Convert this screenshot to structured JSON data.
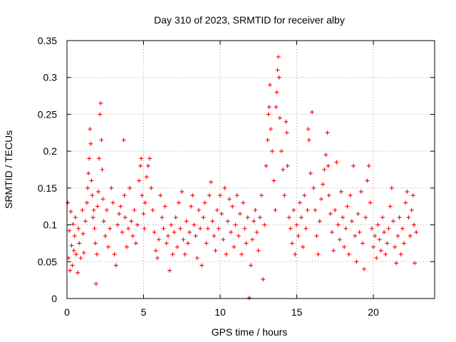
{
  "chart_data": {
    "type": "scatter",
    "title": "Day 310 of 2023, SRMTID for receiver alby",
    "xlabel": "GPS time / hours",
    "ylabel": "SRMTID / TECUs",
    "xlim": [
      0,
      24
    ],
    "ylim": [
      0,
      0.35
    ],
    "xticks": [
      0,
      5,
      10,
      15,
      20
    ],
    "xtick_labels": [
      "0",
      "5",
      "10",
      "15",
      "20"
    ],
    "yticks": [
      0,
      0.05,
      0.1,
      0.15,
      0.2,
      0.25,
      0.3,
      0.35
    ],
    "ytick_labels": [
      "0",
      "0.05",
      "0.1",
      "0.15",
      "0.2",
      "0.25",
      "0.3",
      "0.35"
    ],
    "grid": true,
    "marker": "+",
    "color": "#ff0000",
    "series": [
      {
        "name": "SRMTID",
        "points": [
          [
            0.05,
            0.13
          ],
          [
            0.1,
            0.055
          ],
          [
            0.15,
            0.092
          ],
          [
            0.2,
            0.038
          ],
          [
            0.25,
            0.118
          ],
          [
            0.3,
            0.072
          ],
          [
            0.35,
            0.045
          ],
          [
            0.4,
            0.101
          ],
          [
            0.45,
            0.065
          ],
          [
            0.5,
            0.085
          ],
          [
            0.55,
            0.11
          ],
          [
            0.6,
            0.06
          ],
          [
            0.7,
            0.035
          ],
          [
            0.75,
            0.095
          ],
          [
            0.8,
            0.075
          ],
          [
            0.9,
            0.055
          ],
          [
            1.0,
            0.12
          ],
          [
            1.05,
            0.088
          ],
          [
            1.1,
            0.062
          ],
          [
            1.2,
            0.105
          ],
          [
            1.3,
            0.13
          ],
          [
            1.35,
            0.15
          ],
          [
            1.4,
            0.17
          ],
          [
            1.45,
            0.19
          ],
          [
            1.5,
            0.23
          ],
          [
            1.55,
            0.21
          ],
          [
            1.6,
            0.16
          ],
          [
            1.65,
            0.14
          ],
          [
            1.7,
            0.11
          ],
          [
            1.75,
            0.12
          ],
          [
            1.8,
            0.095
          ],
          [
            1.85,
            0.075
          ],
          [
            1.9,
            0.02
          ],
          [
            1.95,
            0.06
          ],
          [
            2.0,
            0.125
          ],
          [
            2.05,
            0.145
          ],
          [
            2.1,
            0.19
          ],
          [
            2.15,
            0.25
          ],
          [
            2.2,
            0.265
          ],
          [
            2.25,
            0.215
          ],
          [
            2.3,
            0.175
          ],
          [
            2.35,
            0.135
          ],
          [
            2.4,
            0.105
          ],
          [
            2.5,
            0.085
          ],
          [
            2.6,
            0.12
          ],
          [
            2.7,
            0.07
          ],
          [
            2.8,
            0.095
          ],
          [
            2.9,
            0.15
          ],
          [
            3.0,
            0.13
          ],
          [
            3.1,
            0.06
          ],
          [
            3.2,
            0.045
          ],
          [
            3.3,
            0.1
          ],
          [
            3.4,
            0.115
          ],
          [
            3.5,
            0.125
          ],
          [
            3.6,
            0.09
          ],
          [
            3.7,
            0.215
          ],
          [
            3.75,
            0.14
          ],
          [
            3.8,
            0.11
          ],
          [
            3.9,
            0.07
          ],
          [
            4.0,
            0.095
          ],
          [
            4.1,
            0.15
          ],
          [
            4.2,
            0.105
          ],
          [
            4.3,
            0.085
          ],
          [
            4.4,
            0.12
          ],
          [
            4.5,
            0.075
          ],
          [
            4.6,
            0.1
          ],
          [
            4.7,
            0.16
          ],
          [
            4.8,
            0.18
          ],
          [
            4.85,
            0.19
          ],
          [
            4.9,
            0.14
          ],
          [
            5.0,
            0.115
          ],
          [
            5.05,
            0.095
          ],
          [
            5.1,
            0.13
          ],
          [
            5.2,
            0.165
          ],
          [
            5.3,
            0.18
          ],
          [
            5.4,
            0.19
          ],
          [
            5.5,
            0.15
          ],
          [
            5.6,
            0.12
          ],
          [
            5.7,
            0.09
          ],
          [
            5.8,
            0.065
          ],
          [
            5.9,
            0.055
          ],
          [
            6.0,
            0.08
          ],
          [
            6.1,
            0.14
          ],
          [
            6.2,
            0.11
          ],
          [
            6.3,
            0.095
          ],
          [
            6.4,
            0.125
          ],
          [
            6.5,
            0.075
          ],
          [
            6.6,
            0.085
          ],
          [
            6.7,
            0.038
          ],
          [
            6.8,
            0.1
          ],
          [
            6.9,
            0.06
          ],
          [
            7.0,
            0.09
          ],
          [
            7.1,
            0.11
          ],
          [
            7.2,
            0.07
          ],
          [
            7.3,
            0.13
          ],
          [
            7.4,
            0.095
          ],
          [
            7.5,
            0.145
          ],
          [
            7.6,
            0.08
          ],
          [
            7.7,
            0.06
          ],
          [
            7.8,
            0.105
          ],
          [
            7.9,
            0.075
          ],
          [
            8.0,
            0.09
          ],
          [
            8.1,
            0.125
          ],
          [
            8.2,
            0.14
          ],
          [
            8.3,
            0.1
          ],
          [
            8.4,
            0.085
          ],
          [
            8.5,
            0.055
          ],
          [
            8.6,
            0.12
          ],
          [
            8.7,
            0.095
          ],
          [
            8.8,
            0.045
          ],
          [
            8.9,
            0.11
          ],
          [
            9.0,
            0.13
          ],
          [
            9.1,
            0.075
          ],
          [
            9.2,
            0.095
          ],
          [
            9.3,
            0.14
          ],
          [
            9.4,
            0.158
          ],
          [
            9.5,
            0.105
          ],
          [
            9.6,
            0.085
          ],
          [
            9.7,
            0.065
          ],
          [
            9.8,
            0.12
          ],
          [
            9.9,
            0.095
          ],
          [
            10.0,
            0.14
          ],
          [
            10.1,
            0.115
          ],
          [
            10.2,
            0.08
          ],
          [
            10.3,
            0.15
          ],
          [
            10.4,
            0.06
          ],
          [
            10.5,
            0.105
          ],
          [
            10.6,
            0.135
          ],
          [
            10.7,
            0.09
          ],
          [
            10.8,
            0.125
          ],
          [
            10.9,
            0.07
          ],
          [
            11.0,
            0.1
          ],
          [
            11.1,
            0.14
          ],
          [
            11.2,
            0.085
          ],
          [
            11.3,
            0.115
          ],
          [
            11.4,
            0.06
          ],
          [
            11.5,
            0.13
          ],
          [
            11.6,
            0.095
          ],
          [
            11.7,
            0.075
          ],
          [
            11.8,
            0.11
          ],
          [
            11.9,
            0.001
          ],
          [
            12.0,
            0.045
          ],
          [
            12.1,
            0.08
          ],
          [
            12.2,
            0.105
          ],
          [
            12.3,
            0.12
          ],
          [
            12.4,
            0.09
          ],
          [
            12.5,
            0.065
          ],
          [
            12.6,
            0.11
          ],
          [
            12.7,
            0.14
          ],
          [
            12.8,
            0.026
          ],
          [
            12.9,
            0.1
          ],
          [
            13.0,
            0.18
          ],
          [
            13.1,
            0.215
          ],
          [
            13.15,
            0.25
          ],
          [
            13.2,
            0.26
          ],
          [
            13.25,
            0.29
          ],
          [
            13.3,
            0.23
          ],
          [
            13.4,
            0.2
          ],
          [
            13.5,
            0.16
          ],
          [
            13.6,
            0.12
          ],
          [
            13.65,
            0.26
          ],
          [
            13.7,
            0.28
          ],
          [
            13.75,
            0.31
          ],
          [
            13.8,
            0.328
          ],
          [
            13.85,
            0.3
          ],
          [
            13.9,
            0.245
          ],
          [
            14.0,
            0.2
          ],
          [
            14.1,
            0.175
          ],
          [
            14.2,
            0.14
          ],
          [
            14.3,
            0.24
          ],
          [
            14.35,
            0.225
          ],
          [
            14.4,
            0.18
          ],
          [
            14.5,
            0.11
          ],
          [
            14.6,
            0.095
          ],
          [
            14.7,
            0.075
          ],
          [
            14.8,
            0.12
          ],
          [
            14.9,
            0.06
          ],
          [
            15.0,
            0.1
          ],
          [
            15.1,
            0.085
          ],
          [
            15.2,
            0.13
          ],
          [
            15.3,
            0.11
          ],
          [
            15.4,
            0.07
          ],
          [
            15.5,
            0.14
          ],
          [
            15.6,
            0.095
          ],
          [
            15.7,
            0.12
          ],
          [
            15.75,
            0.23
          ],
          [
            15.8,
            0.215
          ],
          [
            15.9,
            0.17
          ],
          [
            16.0,
            0.253
          ],
          [
            16.1,
            0.15
          ],
          [
            16.2,
            0.12
          ],
          [
            16.3,
            0.085
          ],
          [
            16.4,
            0.06
          ],
          [
            16.5,
            0.105
          ],
          [
            16.6,
            0.135
          ],
          [
            16.7,
            0.155
          ],
          [
            16.8,
            0.175
          ],
          [
            16.9,
            0.195
          ],
          [
            17.0,
            0.225
          ],
          [
            17.05,
            0.18
          ],
          [
            17.1,
            0.14
          ],
          [
            17.2,
            0.115
          ],
          [
            17.3,
            0.09
          ],
          [
            17.4,
            0.065
          ],
          [
            17.5,
            0.12
          ],
          [
            17.6,
            0.185
          ],
          [
            17.7,
            0.1
          ],
          [
            17.8,
            0.08
          ],
          [
            17.9,
            0.145
          ],
          [
            18.0,
            0.11
          ],
          [
            18.1,
            0.07
          ],
          [
            18.2,
            0.095
          ],
          [
            18.3,
            0.125
          ],
          [
            18.4,
            0.06
          ],
          [
            18.5,
            0.14
          ],
          [
            18.6,
            0.105
          ],
          [
            18.7,
            0.18
          ],
          [
            18.8,
            0.085
          ],
          [
            18.9,
            0.05
          ],
          [
            19.0,
            0.115
          ],
          [
            19.1,
            0.09
          ],
          [
            19.2,
            0.145
          ],
          [
            19.3,
            0.075
          ],
          [
            19.4,
            0.04
          ],
          [
            19.5,
            0.11
          ],
          [
            19.6,
            0.16
          ],
          [
            19.7,
            0.18
          ],
          [
            19.8,
            0.13
          ],
          [
            19.9,
            0.095
          ],
          [
            20.0,
            0.07
          ],
          [
            20.1,
            0.085
          ],
          [
            20.2,
            0.055
          ],
          [
            20.3,
            0.1
          ],
          [
            20.4,
            0.08
          ],
          [
            20.5,
            0.065
          ],
          [
            20.6,
            0.11
          ],
          [
            20.7,
            0.09
          ],
          [
            20.8,
            0.06
          ],
          [
            20.9,
            0.075
          ],
          [
            21.0,
            0.095
          ],
          [
            21.1,
            0.125
          ],
          [
            21.2,
            0.15
          ],
          [
            21.3,
            0.105
          ],
          [
            21.4,
            0.07
          ],
          [
            21.5,
            0.048
          ],
          [
            21.6,
            0.085
          ],
          [
            21.7,
            0.11
          ],
          [
            21.8,
            0.06
          ],
          [
            21.9,
            0.095
          ],
          [
            22.0,
            0.075
          ],
          [
            22.1,
            0.13
          ],
          [
            22.2,
            0.145
          ],
          [
            22.3,
            0.11
          ],
          [
            22.4,
            0.085
          ],
          [
            22.5,
            0.12
          ],
          [
            22.6,
            0.14
          ],
          [
            22.65,
            0.1
          ],
          [
            22.7,
            0.048
          ],
          [
            22.8,
            0.09
          ]
        ]
      }
    ]
  }
}
